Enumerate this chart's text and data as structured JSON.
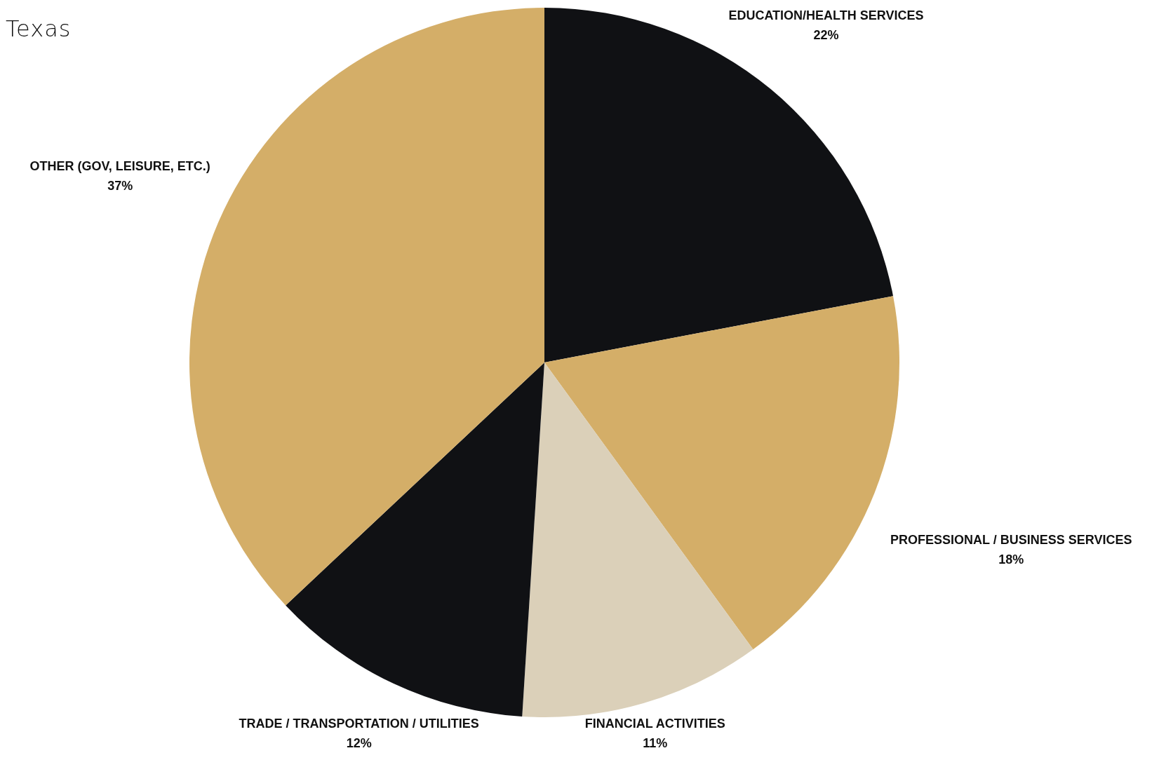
{
  "chart_data": {
    "type": "pie",
    "title": "Texas",
    "categories": [
      "EDUCATION/HEALTH SERVICES",
      "PROFESSIONAL / BUSINESS SERVICES",
      "FINANCIAL ACTIVITIES",
      "TRADE / TRANSPORTATION / UTILITIES",
      "OTHER (GOV, LEISURE, ETC.)"
    ],
    "values": [
      22,
      18,
      11,
      12,
      37
    ],
    "value_labels": [
      "22%",
      "18%",
      "11%",
      "12%",
      "37%"
    ],
    "colors": [
      "#101114",
      "#d4ae68",
      "#dbd0b9",
      "#101114",
      "#d4ae68"
    ],
    "legend": false
  }
}
